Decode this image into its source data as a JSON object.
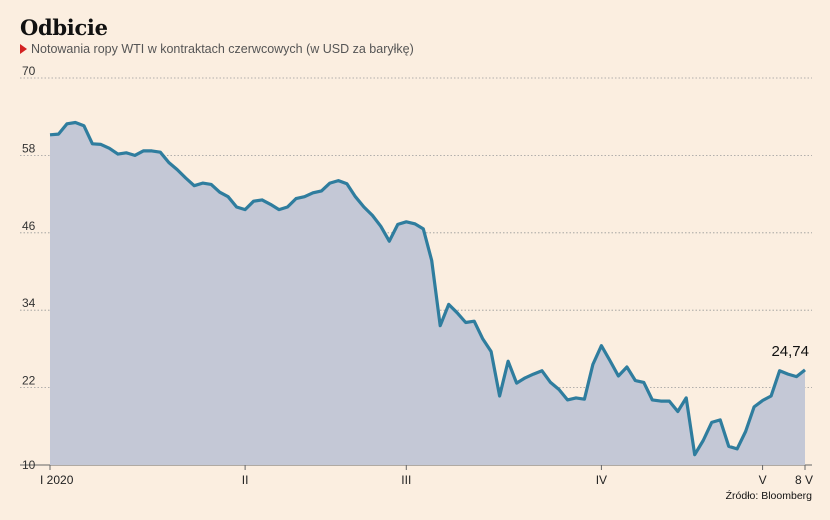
{
  "header": {
    "title": "Odbicie",
    "subtitle": "Notowania ropy WTI w kontraktach czerwcowych (w USD za baryłkę)"
  },
  "source": "Źródło: Bloomberg",
  "colors": {
    "line": "#2f7d9e",
    "area": "#c4c8d6",
    "background": "#fbeee0",
    "marker": "#d32121"
  },
  "chart_data": {
    "type": "area",
    "title": "Odbicie",
    "subtitle": "Notowania ropy WTI w kontraktach czerwcowych (w USD za baryłkę)",
    "xlabel": "",
    "ylabel": "",
    "ylim": [
      10,
      70
    ],
    "yticks": [
      10,
      22,
      34,
      46,
      58,
      70
    ],
    "xtick_labels": [
      {
        "label": "I 2020",
        "index": 0
      },
      {
        "label": "II",
        "index": 23
      },
      {
        "label": "III",
        "index": 42
      },
      {
        "label": "IV",
        "index": 65
      },
      {
        "label": "V",
        "index": 84
      },
      {
        "label": "8 V",
        "index": 89
      }
    ],
    "grid": true,
    "last_value_label": "24,74",
    "values": [
      61.2,
      61.3,
      62.9,
      63.1,
      62.6,
      59.8,
      59.7,
      59.1,
      58.2,
      58.4,
      58.0,
      58.7,
      58.7,
      58.5,
      56.9,
      55.8,
      54.5,
      53.3,
      53.7,
      53.5,
      52.3,
      51.6,
      50.0,
      49.6,
      50.9,
      51.1,
      50.4,
      49.6,
      50.0,
      51.3,
      51.6,
      52.2,
      52.5,
      53.7,
      54.1,
      53.6,
      51.6,
      50.0,
      48.7,
      47.0,
      44.7,
      47.3,
      47.7,
      47.4,
      46.6,
      41.7,
      31.6,
      34.9,
      33.6,
      32.1,
      32.3,
      29.6,
      27.6,
      20.7,
      26.1,
      22.7,
      23.5,
      24.1,
      24.6,
      22.8,
      21.7,
      20.1,
      20.4,
      20.2,
      25.6,
      28.5,
      26.2,
      23.8,
      25.2,
      23.1,
      22.8,
      20.1,
      19.9,
      19.9,
      18.3,
      20.4,
      11.6,
      13.8,
      16.6,
      17.0,
      12.9,
      12.5,
      15.2,
      19.0,
      20.0,
      20.7,
      24.6,
      24.1,
      23.7,
      24.74
    ]
  }
}
